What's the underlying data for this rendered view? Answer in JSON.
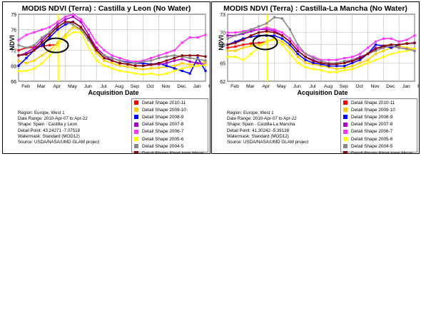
{
  "legend": [
    {
      "label": "Detail Shape 2010-11",
      "color": "#ff0000"
    },
    {
      "label": "Detail Shape 2009-10",
      "color": "#ffcc00"
    },
    {
      "label": "Detail Shape 2008-9",
      "color": "#0000ff"
    },
    {
      "label": "Detail Shape 2007-8",
      "color": "#aa00cc"
    },
    {
      "label": "Detail Shape 2006-7",
      "color": "#ff33ff"
    },
    {
      "label": "Detail Shape 2005-6",
      "color": "#ffff00"
    },
    {
      "label": "Detail Shape 2004-5",
      "color": "#888888"
    },
    {
      "label": "Detail Shape Short-term Mean",
      "color": "#880000"
    }
  ],
  "panels": [
    {
      "title": "MODIS NDVI (Terra) : Castilla y Leon (No Water)",
      "ylabel": "NDVI",
      "xlabel": "Acquisition Date",
      "meta": [
        "Region: Europe, West 1",
        "Date Range: 2010-Apr-07 to Apr-22",
        "Shape: Spain - Castilla y Leon",
        "Detail Point: 43.24271 -7.07518",
        "Watermask: Standard (MOD12)",
        "Source: USDA/NASA/UMD GLAM project"
      ]
    },
    {
      "title": "MODIS NDVI (Terra) : Castilla-La Mancha (No Water)",
      "ylabel": "NDVI",
      "xlabel": "Acquisition Date",
      "meta": [
        "Region: Europe, West 1",
        "Date Range: 2010-Apr-07 to Apr-22",
        "Shape: Spain - Castilla-La Mancha",
        "Detail Point: 41.30242 -5.39138",
        "Watermask: Standard (MOD12)",
        "Source: USDA/NASA/UMD GLAM project"
      ]
    }
  ],
  "chart_data": [
    {
      "type": "line",
      "title": "MODIS NDVI (Terra) : Castilla y Leon (No Water)",
      "xlabel": "Acquisition Date",
      "ylabel": "NDVI",
      "ylim": [
        66,
        79
      ],
      "yticks": [
        66,
        69,
        72,
        76,
        79
      ],
      "xticks": [
        "Feb",
        "Mar",
        "Apr",
        "May",
        "Jun",
        "Jul",
        "Aug",
        "Sep",
        "Oct",
        "Nov",
        "Dec",
        "Jan",
        "Feb"
      ],
      "marker_month": "Apr",
      "grid": true,
      "series": [
        {
          "name": "Detail Shape 2010-11",
          "color": "#ff0000",
          "x": [
            0,
            0.5,
            1,
            1.5,
            2,
            2.5
          ],
          "values": [
            72,
            72.5,
            72.6,
            72.8,
            73,
            73.1
          ]
        },
        {
          "name": "Detail Shape 2009-10",
          "color": "#ffcc00",
          "x": [
            0,
            0.5,
            1,
            1.5,
            2,
            2.5,
            3,
            3.5,
            4,
            4.5,
            5,
            5.5,
            6,
            6.5,
            7,
            7.5,
            8,
            8.5,
            9,
            9.5,
            10,
            10.5,
            11,
            11.5,
            12
          ],
          "values": [
            70,
            69.5,
            70,
            71,
            72,
            73.5,
            75,
            76.5,
            76,
            74,
            71.5,
            70,
            69.5,
            69,
            68.8,
            68.5,
            68.3,
            68.5,
            68.6,
            68.8,
            69,
            69.5,
            69.2,
            69.5,
            69.8
          ]
        },
        {
          "name": "Detail Shape 2008-9",
          "color": "#0000ff",
          "x": [
            0,
            0.5,
            1,
            1.5,
            2,
            2.5,
            3,
            3.5,
            4,
            4.5,
            5,
            5.5,
            6,
            6.5,
            7,
            7.5,
            8,
            8.5,
            9,
            9.5,
            10,
            10.5,
            11,
            11.5,
            12
          ],
          "values": [
            69,
            70.5,
            72,
            73,
            74.5,
            76,
            77,
            77.5,
            76.5,
            74.5,
            72.5,
            71,
            70.5,
            70,
            69.7,
            69.5,
            69.5,
            69.3,
            69.5,
            69,
            68.5,
            68,
            67.5,
            70.5,
            68
          ]
        },
        {
          "name": "Detail Shape 2007-8",
          "color": "#aa00cc",
          "x": [
            0,
            0.5,
            1,
            1.5,
            2,
            2.5,
            3,
            3.5,
            4,
            4.5,
            5,
            5.5,
            6,
            6.5,
            7,
            7.5,
            8,
            8.5,
            9,
            9.5,
            10,
            10.5,
            11,
            11.5,
            12
          ],
          "values": [
            71,
            71.5,
            72.5,
            74,
            75.5,
            77,
            78,
            78.5,
            77.5,
            75,
            72.5,
            71,
            70,
            69.5,
            69.3,
            69,
            69,
            69.2,
            69.3,
            69.5,
            70,
            70.3,
            69.8,
            69.5,
            69.3
          ]
        },
        {
          "name": "Detail Shape 2006-7",
          "color": "#ff33ff",
          "x": [
            0,
            0.5,
            1,
            1.5,
            2,
            2.5,
            3,
            3.5,
            4,
            4.5,
            5,
            5.5,
            6,
            6.5,
            7,
            7.5,
            8,
            8.5,
            9,
            9.5,
            10,
            10.5,
            11,
            11.5,
            12
          ],
          "values": [
            74,
            75,
            75.5,
            76,
            76.5,
            77.5,
            78.5,
            79,
            78,
            76,
            73.5,
            72,
            71,
            70.5,
            70,
            69.8,
            70,
            70.5,
            71,
            71.5,
            72,
            73.5,
            74.5,
            74.5,
            75
          ]
        },
        {
          "name": "Detail Shape 2005-6",
          "color": "#ffff00",
          "x": [
            0,
            0.5,
            1,
            1.5,
            2,
            2.5,
            3,
            3.5,
            4,
            4.5,
            5,
            5.5,
            6,
            6.5,
            7,
            7.5,
            8,
            8.5,
            9,
            9.5,
            10,
            10.5,
            11,
            11.5,
            12
          ],
          "values": [
            68,
            68,
            68.5,
            69.5,
            71,
            73,
            74.5,
            75.5,
            75.5,
            72.5,
            70,
            69,
            68.5,
            68,
            67.8,
            67.5,
            67.3,
            67.5,
            67.2,
            67.5,
            68,
            68.5,
            68.8,
            69,
            69.2
          ]
        },
        {
          "name": "Detail Shape 2004-5",
          "color": "#888888",
          "x": [
            0,
            0.5,
            1,
            1.5,
            2,
            2.5,
            3,
            3.5,
            4,
            4.5,
            5,
            5.5,
            6,
            6.5,
            7,
            7.5,
            8,
            8.5,
            9,
            9.5,
            10,
            10.5,
            11,
            11.5,
            12
          ],
          "values": [
            73,
            72.5,
            73,
            74.5,
            75.5,
            76.5,
            77.5,
            77,
            76,
            74,
            72,
            71,
            70.5,
            70,
            69.5,
            69.5,
            69.8,
            70,
            70.5,
            70.8,
            71,
            70.8,
            70.5,
            70.3,
            70
          ]
        },
        {
          "name": "Detail Shape Short-term Mean",
          "color": "#880000",
          "x": [
            0,
            0.5,
            1,
            1.5,
            2,
            2.5,
            3,
            3.5,
            4,
            4.5,
            5,
            5.5,
            6,
            6.5,
            7,
            7.5,
            8,
            8.5,
            9,
            9.5,
            10,
            10.5,
            11,
            11.5,
            12
          ],
          "values": [
            71,
            71.2,
            72,
            73.5,
            75,
            76.5,
            77.5,
            77.5,
            76.5,
            74.5,
            72,
            70.5,
            70,
            69.5,
            69.3,
            69,
            69,
            69.2,
            69.5,
            70,
            70.5,
            71,
            71,
            71,
            70.8
          ]
        }
      ]
    },
    {
      "type": "line",
      "title": "MODIS NDVI (Terra) : Castilla-La Mancha (No Water)",
      "xlabel": "Acquisition Date",
      "ylabel": "NDVI",
      "ylim": [
        62,
        73
      ],
      "yticks": [
        62,
        65,
        68,
        70,
        73
      ],
      "xticks": [
        "Feb",
        "Mar",
        "Apr",
        "May",
        "Jun",
        "Jul",
        "Aug",
        "Sep",
        "Oct",
        "Nov",
        "Dec",
        "Jan",
        "Feb"
      ],
      "marker_month": "Apr",
      "grid": true,
      "series": [
        {
          "name": "Detail Shape 2010-11",
          "color": "#ff0000",
          "x": [
            0,
            0.5,
            1,
            1.5,
            2,
            2.5
          ],
          "values": [
            67.5,
            67.7,
            68,
            68.2,
            68.3,
            68.5
          ]
        },
        {
          "name": "Detail Shape 2009-10",
          "color": "#ffcc00",
          "x": [
            0,
            0.5,
            1,
            1.5,
            2,
            2.5,
            3,
            3.5,
            4,
            4.5,
            5,
            5.5,
            6,
            6.5,
            7,
            7.5,
            8,
            8.5,
            9,
            9.5,
            10,
            10.5,
            11,
            11.5,
            12
          ],
          "values": [
            67,
            67,
            67.5,
            67.8,
            68,
            68.5,
            69,
            68.5,
            67.5,
            66,
            65,
            64.8,
            64.5,
            64.3,
            64,
            64.2,
            64.5,
            65,
            65.5,
            66.5,
            67,
            67.5,
            67.8,
            67.5,
            67.3
          ]
        },
        {
          "name": "Detail Shape 2008-9",
          "color": "#0000ff",
          "x": [
            0,
            0.5,
            1,
            1.5,
            2,
            2.5,
            3,
            3.5,
            4,
            4.5,
            5,
            5.5,
            6,
            6.5,
            7,
            7.5,
            8,
            8.5,
            9,
            9.5,
            10,
            10.5,
            11,
            11.5,
            12
          ],
          "values": [
            68,
            68.5,
            69,
            69.3,
            69.5,
            69.5,
            69.5,
            69,
            68,
            66.5,
            65.5,
            65,
            64.8,
            64.5,
            64.5,
            64.5,
            65,
            65.5,
            66.5,
            68,
            67.8,
            67.5,
            68,
            68.2,
            68.3
          ]
        },
        {
          "name": "Detail Shape 2007-8",
          "color": "#aa00cc",
          "x": [
            0,
            0.5,
            1,
            1.5,
            2,
            2.5,
            3,
            3.5,
            4,
            4.5,
            5,
            5.5,
            6,
            6.5,
            7,
            7.5,
            8,
            8.5,
            9,
            9.5,
            10,
            10.5,
            11,
            11.5,
            12
          ],
          "values": [
            69.5,
            69.5,
            69.8,
            70.2,
            70.5,
            70.5,
            70.3,
            69.5,
            68.5,
            67,
            66,
            65.5,
            65,
            64.8,
            64.8,
            65,
            65.5,
            66,
            66.5,
            67.5,
            67.5,
            67.8,
            67.5,
            67.3,
            67
          ]
        },
        {
          "name": "Detail Shape 2006-7",
          "color": "#ff33ff",
          "x": [
            0,
            0.5,
            1,
            1.5,
            2,
            2.5,
            3,
            3.5,
            4,
            4.5,
            5,
            5.5,
            6,
            6.5,
            7,
            7.5,
            8,
            8.5,
            9,
            9.5,
            10,
            10.5,
            11,
            11.5,
            12
          ],
          "values": [
            70,
            70,
            70.2,
            70.5,
            70.5,
            70.8,
            70.5,
            70,
            69,
            67.5,
            66.5,
            66,
            65.5,
            65.5,
            65.5,
            65.8,
            66,
            66.5,
            67.5,
            68.5,
            69,
            69,
            68.5,
            68.8,
            69.5
          ]
        },
        {
          "name": "Detail Shape 2005-6",
          "color": "#ffff00",
          "x": [
            0,
            0.5,
            1,
            1.5,
            2,
            2.5,
            3,
            3.5,
            4,
            4.5,
            5,
            5.5,
            6,
            6.5,
            7,
            7.5,
            8,
            8.5,
            9,
            9.5,
            10,
            10.5,
            11,
            11.5,
            12
          ],
          "values": [
            66,
            66,
            65.5,
            66.5,
            67.5,
            68.5,
            68.8,
            68,
            66.5,
            65,
            64.3,
            64,
            63.8,
            63.5,
            63.5,
            63.8,
            64,
            64.5,
            65,
            65.5,
            66,
            66.5,
            66.8,
            67,
            67.2
          ]
        },
        {
          "name": "Detail Shape 2004-5",
          "color": "#888888",
          "x": [
            0,
            0.5,
            1,
            1.5,
            2,
            2.5,
            3,
            3.5,
            4,
            4.5,
            5,
            5.5,
            6,
            6.5,
            7,
            7.5,
            8,
            8.5,
            9,
            9.5,
            10,
            10.5,
            11,
            11.5,
            12
          ],
          "values": [
            69,
            69.5,
            70,
            70.5,
            71,
            71.5,
            72.5,
            72.3,
            70.5,
            68,
            66.5,
            65.8,
            65.3,
            65,
            65,
            65.3,
            65.5,
            65.8,
            66.5,
            67,
            67.5,
            67.8,
            67.5,
            67.3,
            67
          ]
        },
        {
          "name": "Detail Shape Short-term Mean",
          "color": "#880000",
          "x": [
            0,
            0.5,
            1,
            1.5,
            2,
            2.5,
            3,
            3.5,
            4,
            4.5,
            5,
            5.5,
            6,
            6.5,
            7,
            7.5,
            8,
            8.5,
            9,
            9.5,
            10,
            10.5,
            11,
            11.5,
            12
          ],
          "values": [
            68,
            68.3,
            68.8,
            69.5,
            70,
            70.2,
            70,
            69.5,
            68.5,
            67,
            66,
            65.3,
            65,
            64.8,
            64.8,
            65,
            65.3,
            65.8,
            66.5,
            67.3,
            67.8,
            68,
            68,
            68.2,
            68.3
          ]
        }
      ]
    }
  ]
}
